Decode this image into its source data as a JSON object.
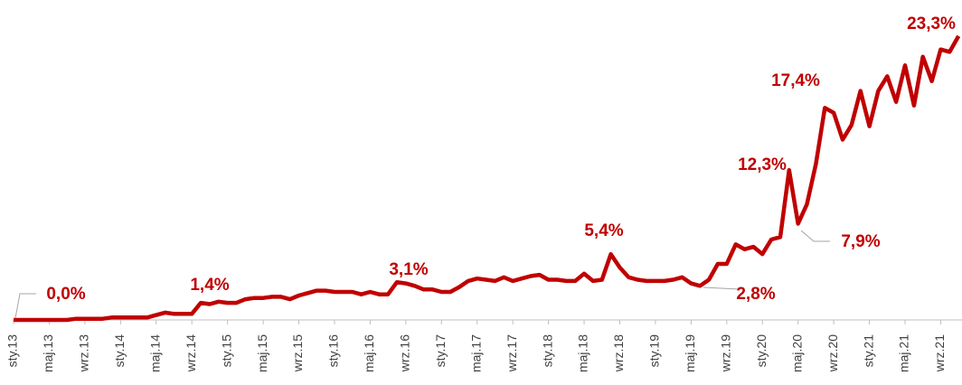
{
  "chart_data": {
    "type": "line",
    "categories": [
      "sty.13",
      null,
      null,
      null,
      "maj.13",
      null,
      null,
      null,
      "wrz.13",
      null,
      null,
      null,
      "sty.14",
      null,
      null,
      null,
      "maj.14",
      null,
      null,
      null,
      "wrz.14",
      null,
      null,
      null,
      "sty.15",
      null,
      null,
      null,
      "maj.15",
      null,
      null,
      null,
      "wrz.15",
      null,
      null,
      null,
      "sty.16",
      null,
      null,
      null,
      "maj.16",
      null,
      null,
      null,
      "wrz.16",
      null,
      null,
      null,
      "sty.17",
      null,
      null,
      null,
      "maj.17",
      null,
      null,
      null,
      "wrz.17",
      null,
      null,
      null,
      "sty.18",
      null,
      null,
      null,
      "maj.18",
      null,
      null,
      null,
      "wrz.18",
      null,
      null,
      null,
      "sty.19",
      null,
      null,
      null,
      "maj.19",
      null,
      null,
      null,
      "wrz.19",
      null,
      null,
      null,
      "sty.20",
      null,
      null,
      null,
      "maj.20",
      null,
      null,
      null,
      "wrz.20",
      null,
      null,
      null,
      "sty.21",
      null,
      null,
      null,
      "maj.21",
      null,
      null,
      null,
      "wrz.21",
      null,
      null
    ],
    "color": "#c00000",
    "values": [
      0.0,
      0.0,
      0.0,
      0.0,
      0.0,
      0.0,
      0.0,
      0.1,
      0.1,
      0.1,
      0.1,
      0.2,
      0.2,
      0.2,
      0.2,
      0.2,
      0.4,
      0.6,
      0.5,
      0.5,
      0.5,
      1.4,
      1.3,
      1.5,
      1.4,
      1.4,
      1.7,
      1.8,
      1.8,
      1.9,
      1.9,
      1.7,
      2.0,
      2.2,
      2.4,
      2.4,
      2.3,
      2.3,
      2.3,
      2.1,
      2.3,
      2.1,
      2.1,
      3.1,
      3.0,
      2.8,
      2.5,
      2.5,
      2.3,
      2.3,
      2.7,
      3.2,
      3.4,
      3.3,
      3.2,
      3.5,
      3.2,
      3.4,
      3.6,
      3.7,
      3.3,
      3.3,
      3.2,
      3.2,
      3.8,
      3.2,
      3.3,
      5.4,
      4.3,
      3.5,
      3.3,
      3.2,
      3.2,
      3.2,
      3.3,
      3.5,
      3.0,
      2.8,
      3.3,
      4.6,
      4.6,
      6.2,
      5.8,
      6.0,
      5.4,
      6.6,
      6.8,
      12.3,
      7.9,
      9.5,
      12.8,
      17.4,
      17.0,
      14.8,
      16.0,
      18.8,
      15.9,
      18.8,
      20.0,
      17.9,
      20.9,
      17.6,
      21.6,
      19.6,
      22.2,
      22.0,
      23.3
    ],
    "value_labels": [
      "0,0%",
      null,
      null,
      null,
      null,
      null,
      null,
      null,
      null,
      null,
      null,
      null,
      null,
      null,
      null,
      null,
      null,
      null,
      null,
      null,
      null,
      "1,4%",
      null,
      null,
      null,
      null,
      null,
      null,
      null,
      null,
      null,
      null,
      null,
      null,
      null,
      null,
      null,
      null,
      null,
      null,
      null,
      null,
      null,
      "3,1%",
      null,
      null,
      null,
      null,
      null,
      null,
      null,
      null,
      null,
      null,
      null,
      null,
      null,
      null,
      null,
      null,
      null,
      null,
      null,
      null,
      null,
      null,
      null,
      "5,4%",
      null,
      null,
      null,
      null,
      null,
      null,
      null,
      null,
      null,
      "2,8%",
      null,
      null,
      null,
      null,
      null,
      null,
      null,
      null,
      null,
      "12,3%",
      "7,9%",
      null,
      null,
      "17,4%",
      null,
      null,
      null,
      null,
      null,
      null,
      null,
      null,
      null,
      null,
      null,
      null,
      null,
      null,
      "23,3%"
    ],
    "ylim": [
      0,
      25
    ]
  }
}
